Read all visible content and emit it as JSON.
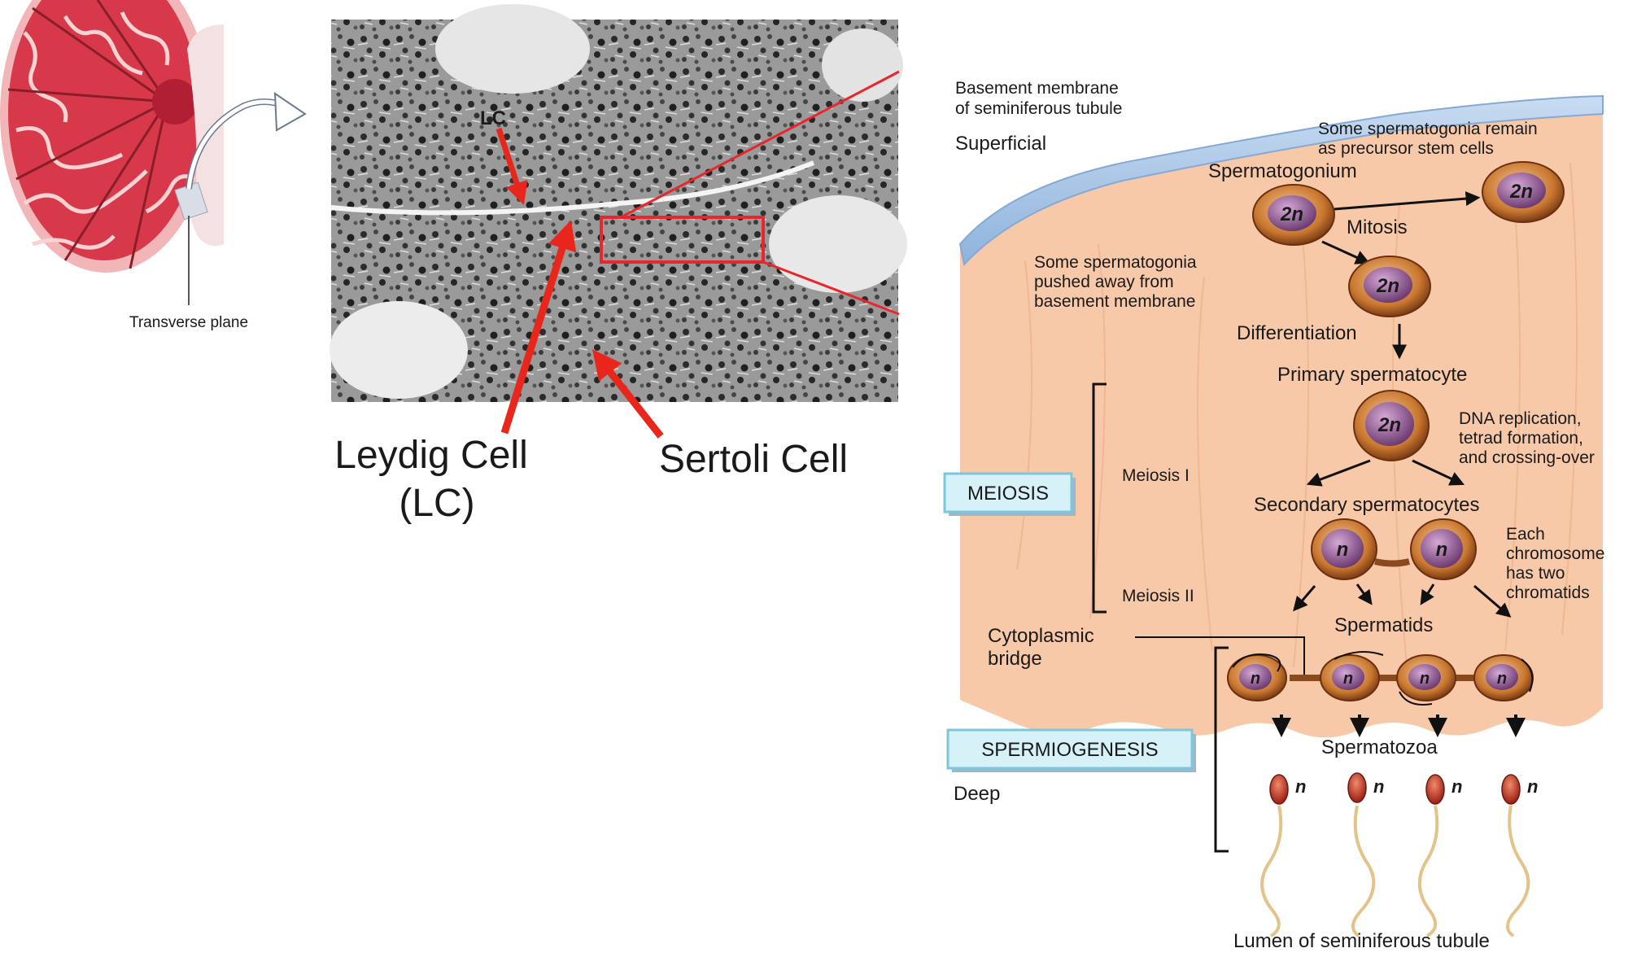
{
  "testis": {
    "plane_label": "Transverse plane"
  },
  "micrograph": {
    "lc_tag": "LC"
  },
  "callouts": {
    "leydig_line1": "Leydig Cell",
    "leydig_line2": "(LC)",
    "sertoli": "Sertoli Cell"
  },
  "diagram": {
    "basement_line1": "Basement membrane",
    "basement_line2": "of seminiferous tubule",
    "superficial": "Superficial",
    "stem_line1": "Some spermatogonia remain",
    "stem_line2": "as precursor stem cells",
    "spermatogonium": "Spermatogonium",
    "mitosis": "Mitosis",
    "pushed_line1": "Some spermatogonia",
    "pushed_line2": "pushed away from",
    "pushed_line3": "basement membrane",
    "differentiation": "Differentiation",
    "primary": "Primary spermatocyte",
    "dna_line1": "DNA replication,",
    "dna_line2": "tetrad formation,",
    "dna_line3": "and crossing-over",
    "meiosis_box": "MEIOSIS",
    "meiosis_1": "Meiosis I",
    "meiosis_2": "Meiosis II",
    "secondary": "Secondary spermatocytes",
    "each_line1": "Each",
    "each_line2": "chromosome",
    "each_line3": "has two",
    "each_line4": "chromatids",
    "cyto_line1": "Cytoplasmic",
    "cyto_line2": "bridge",
    "spermatids": "Spermatids",
    "spermiogenesis_box": "SPERMIOGENESIS",
    "spermatozoa": "Spermatozoa",
    "deep": "Deep",
    "lumen": "Lumen of seminiferous tubule",
    "diploid": "2n",
    "haploid": "n"
  },
  "colors": {
    "tissue": "#f8c9a8",
    "membrane": "#a9c6e6",
    "cell_rim": "#8a4a1e",
    "nucleus": "#7b4a7e",
    "arrow_red": "#e8261c",
    "box_fill": "#d6f1f8",
    "box_border": "#7ac7df"
  }
}
